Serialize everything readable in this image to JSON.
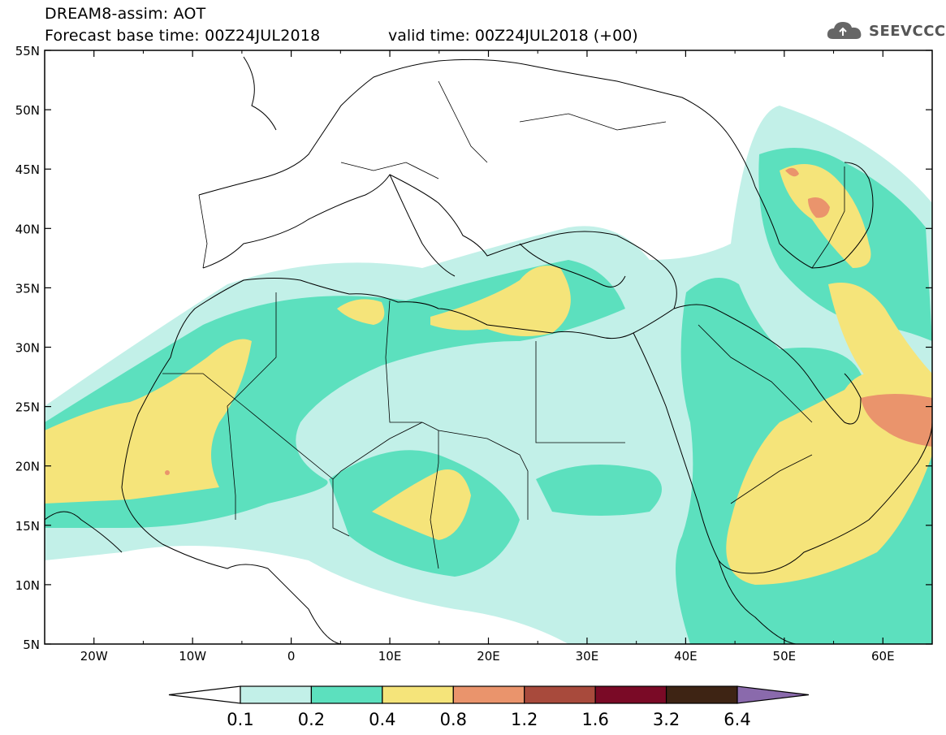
{
  "header": {
    "title_line1": "DREAM8-assim: AOT",
    "title_line2": "Forecast base time: 00Z24JUL2018",
    "valid_time": "valid time: 00Z24JUL2018 (+00)",
    "logo_text": "SEEVCCC"
  },
  "map": {
    "lat_labels": [
      "55N",
      "50N",
      "45N",
      "40N",
      "35N",
      "30N",
      "25N",
      "20N",
      "15N",
      "10N",
      "5N"
    ],
    "lon_labels": [
      "20W",
      "10W",
      "0",
      "10E",
      "20E",
      "30E",
      "40E",
      "50E",
      "60E"
    ],
    "lat_range": [
      5,
      55
    ],
    "lon_range": [
      -25,
      65
    ]
  },
  "colorbar": {
    "colors": [
      "#ffffff",
      "#c2f0e8",
      "#5ce0be",
      "#f5e47a",
      "#ea946c",
      "#a84a3c",
      "#7a0a26",
      "#3e2414",
      "#8a6aac"
    ],
    "labels": [
      "0.1",
      "0.2",
      "0.4",
      "0.8",
      "1.2",
      "1.6",
      "3.2",
      "6.4"
    ]
  }
}
